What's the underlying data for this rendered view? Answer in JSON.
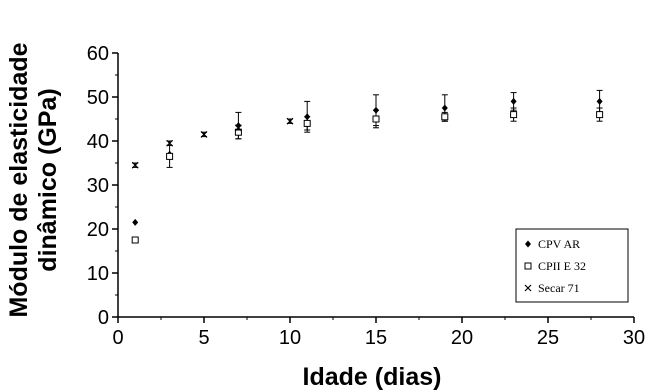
{
  "chart_data": {
    "type": "scatter",
    "xlabel": "Idade (dias)",
    "ylabel_lines": [
      "Módulo de elasticidade",
      "dinâmico (GPa)"
    ],
    "xlim": [
      0,
      30
    ],
    "ylim": [
      0,
      60
    ],
    "xticks": [
      0,
      5,
      10,
      15,
      20,
      25,
      30
    ],
    "yticks": [
      0,
      10,
      20,
      30,
      40,
      50,
      60
    ],
    "grid": false,
    "legend_position": "bottom-right",
    "series": [
      {
        "name": "CPV AR",
        "marker": "diamond",
        "x": [
          1,
          3,
          7,
          11,
          15,
          19,
          23,
          28
        ],
        "y": [
          21.5,
          37,
          43.5,
          45.5,
          47,
          47.5,
          49,
          49
        ],
        "err": [
          0,
          0,
          3,
          3.5,
          3.5,
          3,
          2,
          2.5
        ]
      },
      {
        "name": "CPII E 32",
        "marker": "square",
        "x": [
          1,
          3,
          7,
          11,
          15,
          19,
          23,
          28
        ],
        "y": [
          17.5,
          36.5,
          42,
          44,
          45,
          45.5,
          46,
          46
        ],
        "err": [
          0,
          2.5,
          1.5,
          1.5,
          2,
          1,
          1.5,
          1.5
        ]
      },
      {
        "name": "Secar 71",
        "marker": "x",
        "x": [
          1,
          3,
          5,
          7,
          10
        ],
        "y": [
          34.5,
          39.5,
          41.5,
          43,
          44.5
        ],
        "err": [
          0.5,
          0.5,
          0.5,
          0.5,
          0.5
        ]
      }
    ]
  }
}
